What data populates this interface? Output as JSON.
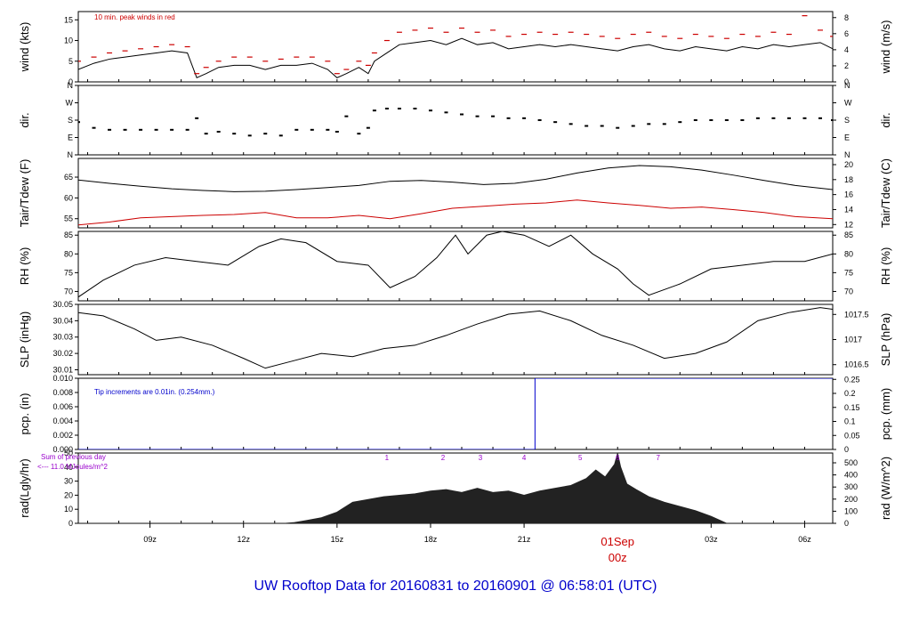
{
  "title": "UW Rooftop Data for 20160831  to  20160901 @ 06:58:01  (UTC)",
  "colors": {
    "primary": "#000000",
    "accent": "#cc0000",
    "pcp": "#0000cc",
    "radnote": "#9900cc"
  },
  "chart_data": [
    {
      "id": "wind",
      "type": "line",
      "ylabel": "wind (kts)",
      "ylabel_right": "wind (m/s)",
      "ylim": [
        0,
        17
      ],
      "ylim_right": [
        0,
        8.75
      ],
      "yticks": [
        0,
        5,
        10,
        15
      ],
      "yticks_right": [
        0,
        2,
        4,
        6,
        8
      ],
      "annotation": "10 min. peak winds in red",
      "series": [
        {
          "id": "wind_speed",
          "color": "#000000",
          "x": [
            6.7,
            7.2,
            7.7,
            8.2,
            8.7,
            9.2,
            9.7,
            10.2,
            10.5,
            10.8,
            11.2,
            11.7,
            12.2,
            12.7,
            13.2,
            13.7,
            14.2,
            14.7,
            15.0,
            15.3,
            15.7,
            16.0,
            16.2,
            16.6,
            17.0,
            17.5,
            18.0,
            18.5,
            19.0,
            19.5,
            20.0,
            20.5,
            21.0,
            21.5,
            22.0,
            22.5,
            23.0,
            23.5,
            24.0,
            24.5,
            25.0,
            25.5,
            26.0,
            26.5,
            27.0,
            27.5,
            28.0,
            28.5,
            29.0,
            29.5,
            30.0,
            30.5,
            30.9
          ],
          "y": [
            3,
            4.5,
            5.5,
            6,
            6.5,
            7,
            7.5,
            7,
            1,
            2,
            3.5,
            4,
            4,
            3,
            4,
            4,
            4.5,
            3,
            1,
            2,
            3.5,
            2,
            5,
            7,
            9,
            9.5,
            10,
            9,
            10.5,
            9,
            9.5,
            8,
            8.5,
            9,
            8.5,
            9,
            8.5,
            8,
            7.5,
            8.5,
            9,
            8,
            7.5,
            8.5,
            8,
            7.5,
            8.5,
            8,
            9,
            8.5,
            9,
            9.5,
            8
          ]
        },
        {
          "id": "peak_wind",
          "color": "#cc0000",
          "style": "dash",
          "x": [
            6.7,
            7.2,
            7.7,
            8.2,
            8.7,
            9.2,
            9.7,
            10.2,
            10.5,
            10.8,
            11.2,
            11.7,
            12.2,
            12.7,
            13.2,
            13.7,
            14.2,
            14.7,
            15.0,
            15.3,
            15.7,
            16.0,
            16.2,
            16.6,
            17.0,
            17.5,
            18.0,
            18.5,
            19.0,
            19.5,
            20.0,
            20.5,
            21.0,
            21.5,
            22.0,
            22.5,
            23.0,
            23.5,
            24.0,
            24.5,
            25.0,
            25.5,
            26.0,
            26.5,
            27.0,
            27.5,
            28.0,
            28.5,
            29.0,
            29.5,
            30.0,
            30.5,
            30.9
          ],
          "y": [
            5,
            6,
            7,
            7.5,
            8,
            8.5,
            9,
            8.5,
            2,
            3.5,
            5,
            6,
            6,
            5,
            5.5,
            6,
            6,
            5,
            2,
            3,
            5,
            4,
            7,
            10,
            12,
            12.5,
            13,
            12,
            13,
            12,
            12.5,
            11,
            11.5,
            12,
            11.5,
            12,
            11.5,
            11,
            10.5,
            11.5,
            12,
            11,
            10.5,
            11.5,
            11,
            10.5,
            11.5,
            11,
            12,
            11.5,
            16,
            12.5,
            11
          ]
        }
      ]
    },
    {
      "id": "dir",
      "type": "scatter",
      "ylabel": "dir.",
      "ylabel_right": "dir.",
      "ylim": [
        0,
        360
      ],
      "yticks": [
        0,
        90,
        180,
        270,
        360
      ],
      "ytick_labels": [
        "N",
        "E",
        "S",
        "W",
        "N"
      ],
      "x": [
        6.7,
        7.2,
        7.7,
        8.2,
        8.7,
        9.2,
        9.7,
        10.2,
        10.5,
        10.8,
        11.2,
        11.7,
        12.2,
        12.7,
        13.2,
        13.7,
        14.2,
        14.7,
        15.0,
        15.3,
        15.7,
        16.0,
        16.2,
        16.6,
        17.0,
        17.5,
        18.0,
        18.5,
        19.0,
        19.5,
        20.0,
        20.5,
        21.0,
        21.5,
        22.0,
        22.5,
        23.0,
        23.5,
        24.0,
        24.5,
        25.0,
        25.5,
        26.0,
        26.5,
        27.0,
        27.5,
        28.0,
        28.5,
        29.0,
        29.5,
        30.0,
        30.5,
        30.9
      ],
      "y": [
        170,
        140,
        130,
        130,
        130,
        130,
        130,
        130,
        190,
        110,
        120,
        110,
        100,
        110,
        100,
        130,
        130,
        130,
        120,
        200,
        110,
        140,
        230,
        240,
        240,
        240,
        230,
        220,
        210,
        200,
        200,
        190,
        190,
        180,
        170,
        160,
        150,
        150,
        140,
        150,
        160,
        160,
        170,
        180,
        180,
        180,
        180,
        190,
        190,
        190,
        190,
        190,
        180
      ]
    },
    {
      "id": "temp",
      "type": "line",
      "ylabel": "Tair/Tdew (F)",
      "ylabel_right": "Tair/Tdew (C)",
      "ylim": [
        52.8,
        69.5
      ],
      "ylim_right": [
        11.56,
        20.83
      ],
      "yticks": [
        55,
        60,
        65
      ],
      "yticks_right": [
        12,
        14,
        16,
        18,
        20
      ],
      "series": [
        {
          "id": "tair",
          "color": "#000000",
          "x": [
            6.7,
            7.7,
            8.7,
            9.7,
            10.7,
            11.7,
            12.7,
            13.7,
            14.7,
            15.7,
            16.7,
            17.7,
            18.7,
            19.7,
            20.7,
            21.7,
            22.7,
            23.7,
            24.7,
            25.7,
            26.7,
            27.7,
            28.7,
            29.7,
            30.9
          ],
          "y": [
            64.3,
            63.5,
            62.8,
            62.2,
            61.8,
            61.5,
            61.6,
            62,
            62.5,
            63,
            64,
            64.2,
            63.8,
            63.2,
            63.5,
            64.5,
            66,
            67.2,
            67.8,
            67.5,
            66.7,
            65.5,
            64.2,
            63,
            62
          ]
        },
        {
          "id": "tdew",
          "color": "#cc0000",
          "x": [
            6.7,
            7.7,
            8.7,
            9.7,
            10.7,
            11.7,
            12.7,
            13.7,
            14.7,
            15.7,
            16.7,
            17.7,
            18.7,
            19.7,
            20.7,
            21.7,
            22.7,
            23.7,
            24.7,
            25.7,
            26.7,
            27.7,
            28.7,
            29.7,
            30.9
          ],
          "y": [
            53.5,
            54.2,
            55.2,
            55.5,
            55.8,
            56,
            56.5,
            55.2,
            55.2,
            55.8,
            55,
            56.2,
            57.5,
            58,
            58.5,
            58.8,
            59.5,
            58.8,
            58.2,
            57.5,
            57.8,
            57.2,
            56.5,
            55.5,
            55
          ]
        }
      ]
    },
    {
      "id": "rh",
      "type": "line",
      "ylabel": "RH (%)",
      "ylabel_right": "RH (%)",
      "ylim": [
        67.5,
        86
      ],
      "yticks": [
        70,
        75,
        80,
        85
      ],
      "yticks_right": [
        70,
        75,
        80,
        85
      ],
      "series": [
        {
          "id": "rh",
          "color": "#000000",
          "x": [
            6.7,
            7.5,
            8.5,
            9.5,
            10.5,
            11.5,
            12.5,
            13.2,
            14.0,
            15.0,
            16.0,
            16.7,
            17.5,
            18.2,
            18.8,
            19.2,
            19.8,
            20.3,
            21.0,
            21.8,
            22.5,
            23.2,
            24.0,
            24.5,
            25.0,
            26.0,
            27.0,
            28.0,
            29.0,
            30.0,
            30.9
          ],
          "y": [
            68.5,
            73,
            77,
            79,
            78,
            77,
            82,
            84,
            83,
            78,
            77,
            71,
            74,
            79,
            85,
            80,
            85,
            86,
            85,
            82,
            85,
            80,
            76,
            72,
            69,
            72,
            76,
            77,
            78,
            78,
            80
          ]
        }
      ]
    },
    {
      "id": "slp",
      "type": "line",
      "ylabel": "SLP (inHg)",
      "ylabel_right": "SLP (hPa)",
      "ylim": [
        30.007,
        30.05
      ],
      "ylim_right": [
        1016.3,
        1017.7
      ],
      "yticks": [
        30.01,
        30.02,
        30.03,
        30.04,
        30.05
      ],
      "yticks_right": [
        1016.5,
        1017,
        1017.5
      ],
      "series": [
        {
          "id": "slp",
          "color": "#000000",
          "x": [
            6.7,
            7.5,
            8.5,
            9.2,
            10.0,
            11.0,
            12.0,
            12.7,
            13.5,
            14.5,
            15.5,
            16.5,
            17.5,
            18.5,
            19.5,
            20.5,
            21.5,
            22.5,
            23.5,
            24.5,
            25.5,
            26.5,
            27.5,
            28.5,
            29.5,
            30.5,
            30.9
          ],
          "y": [
            30.045,
            30.043,
            30.035,
            30.028,
            30.03,
            30.025,
            30.017,
            30.011,
            30.015,
            30.02,
            30.018,
            30.023,
            30.025,
            30.031,
            30.038,
            30.044,
            30.046,
            30.04,
            30.031,
            30.025,
            30.017,
            30.02,
            30.027,
            30.04,
            30.045,
            30.048,
            30.047
          ]
        }
      ]
    },
    {
      "id": "pcp",
      "type": "line",
      "ylabel": "pcp. (in)",
      "ylabel_right": "pcp. (mm)",
      "ylim": [
        0,
        0.01
      ],
      "ylim_right": [
        0,
        0.254
      ],
      "yticks": [
        0,
        0.002,
        0.004,
        0.006,
        0.008,
        0.01
      ],
      "ytick_labels": [
        "0.000",
        "0.002",
        "0.004",
        "0.006",
        "0.008",
        "0.010"
      ],
      "yticks_right": [
        0,
        0.05,
        0.1,
        0.15,
        0.2,
        0.25
      ],
      "annotation": "Tip increments are 0.01in. (0.254mm.)",
      "series": [
        {
          "id": "pcp",
          "color": "#0000cc",
          "x": [
            6.7,
            21.35,
            21.35,
            30.9
          ],
          "y": [
            0,
            0,
            0.01,
            0.01
          ]
        }
      ]
    },
    {
      "id": "rad",
      "type": "area",
      "ylabel": "rad(Lgly/hr)",
      "ylabel_right": "rad (W/m^2)",
      "ylim": [
        0,
        50
      ],
      "ylim_right": [
        0,
        581
      ],
      "yticks": [
        0,
        10,
        20,
        30,
        40,
        50
      ],
      "yticks_right": [
        0,
        100,
        200,
        300,
        400,
        500
      ],
      "annotations": [
        "Sum of previous day",
        "<--- 11.0 MJoules/m^2"
      ],
      "hour_labels": [
        {
          "label": "1",
          "x": 16.6
        },
        {
          "label": "2",
          "x": 18.4
        },
        {
          "label": "3",
          "x": 19.6
        },
        {
          "label": "4",
          "x": 21.0
        },
        {
          "label": "5",
          "x": 22.8
        },
        {
          "label": "6",
          "x": 24.0
        },
        {
          "label": "7",
          "x": 25.3
        }
      ],
      "series": [
        {
          "id": "rad",
          "color": "#222222",
          "x": [
            6.7,
            13.3,
            13.6,
            14.0,
            14.5,
            15.0,
            15.5,
            16.0,
            16.5,
            17.0,
            17.5,
            18.0,
            18.5,
            19.0,
            19.5,
            20.0,
            20.5,
            21.0,
            21.5,
            22.0,
            22.5,
            23.0,
            23.3,
            23.6,
            23.9,
            24.0,
            24.1,
            24.3,
            24.6,
            25.0,
            25.5,
            26.0,
            26.5,
            27.0,
            27.5,
            30.9
          ],
          "y": [
            0,
            0,
            0.5,
            2,
            4,
            8,
            15,
            17,
            19,
            20,
            21,
            23,
            24,
            22,
            25,
            22,
            23,
            20,
            23,
            25,
            27,
            32,
            38,
            33,
            42,
            50,
            40,
            28,
            24,
            19,
            15,
            12,
            9,
            5,
            0,
            0
          ]
        }
      ]
    }
  ],
  "x_axis": {
    "xlim": [
      6.7,
      30.9
    ],
    "ticks": [
      {
        "x": 9,
        "label": "09z"
      },
      {
        "x": 12,
        "label": "12z"
      },
      {
        "x": 15,
        "label": "15z"
      },
      {
        "x": 18,
        "label": "18z"
      },
      {
        "x": 21,
        "label": "21z"
      },
      {
        "x": 27,
        "label": "03z"
      },
      {
        "x": 30,
        "label": "06z"
      }
    ],
    "day_marker": {
      "x": 24,
      "date": "01Sep",
      "label": "00z"
    }
  }
}
